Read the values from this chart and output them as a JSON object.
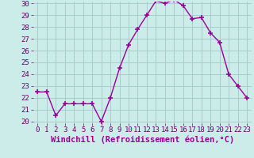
{
  "x": [
    0,
    1,
    2,
    3,
    4,
    5,
    6,
    7,
    8,
    9,
    10,
    11,
    12,
    13,
    14,
    15,
    16,
    17,
    18,
    19,
    20,
    21,
    22,
    23
  ],
  "y": [
    22.5,
    22.5,
    20.5,
    21.5,
    21.5,
    21.5,
    21.5,
    20.0,
    22.0,
    24.5,
    26.5,
    27.8,
    29.0,
    30.2,
    30.0,
    30.3,
    29.8,
    28.7,
    28.8,
    27.5,
    26.7,
    24.0,
    23.0,
    22.0
  ],
  "line_color": "#990099",
  "marker": "+",
  "marker_size": 4,
  "line_width": 1.0,
  "bg_color": "#ccecea",
  "grid_color": "#aacccc",
  "xlabel": "Windchill (Refroidissement éolien,°C)",
  "xlabel_fontsize": 7.5,
  "tick_fontsize": 6.5,
  "ylim": [
    20,
    30
  ],
  "xlim": [
    -0.5,
    23.5
  ],
  "yticks": [
    20,
    21,
    22,
    23,
    24,
    25,
    26,
    27,
    28,
    29,
    30
  ],
  "xticks": [
    0,
    1,
    2,
    3,
    4,
    5,
    6,
    7,
    8,
    9,
    10,
    11,
    12,
    13,
    14,
    15,
    16,
    17,
    18,
    19,
    20,
    21,
    22,
    23
  ]
}
